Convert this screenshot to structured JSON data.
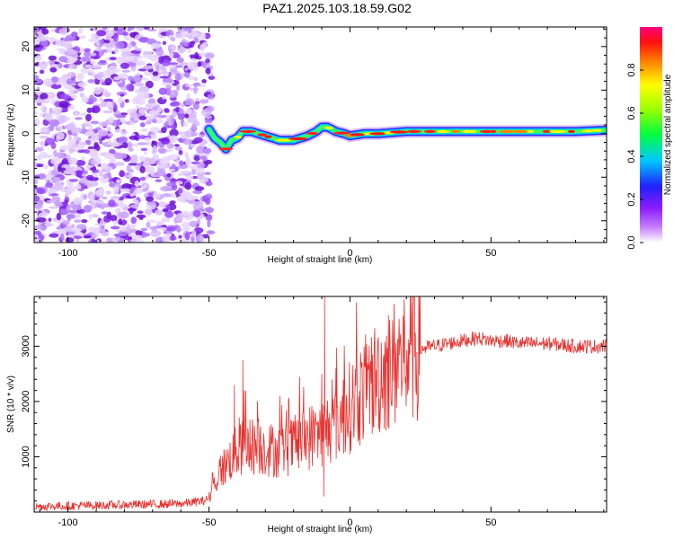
{
  "title": "PAZ1.2025.103.18.59.G02",
  "colors": {
    "snr_line": "#e8312e",
    "scatter_noise": "#8a2be2",
    "axis": "#000000"
  },
  "chart_data": [
    {
      "type": "heatmap",
      "name": "spectrogram",
      "xlabel": "Height of straight line (km)",
      "ylabel": "Frequency (Hz)",
      "xlim": [
        -112,
        91
      ],
      "ylim": [
        -25,
        24.5
      ],
      "xticks": [
        -100,
        -50,
        0,
        50
      ],
      "yticks": [
        -20,
        -10,
        0,
        10,
        20
      ],
      "noise_region": [
        -112,
        -49
      ],
      "ridge": {
        "x": [
          -50,
          -48,
          -46,
          -44,
          -42,
          -40,
          -38,
          -35,
          -30,
          -25,
          -20,
          -15,
          -12,
          -10,
          -8,
          -5,
          -2,
          0,
          5,
          10,
          20,
          30,
          40,
          50,
          60,
          70,
          80,
          91
        ],
        "y": [
          1,
          -1,
          -2,
          -3.5,
          -1.5,
          -1,
          0.5,
          0.5,
          -0.5,
          -1.5,
          -1.5,
          -0.5,
          0.5,
          1.5,
          1.5,
          0.5,
          0,
          -0.5,
          0,
          0,
          0.5,
          0.5,
          0.5,
          0.5,
          0.5,
          0.5,
          0.5,
          0.8
        ]
      },
      "colorbar": {
        "label": "Normalized spectral amplitude",
        "ticks": [
          "0.0",
          "0.2",
          "0.4",
          "0.6",
          "0.8"
        ],
        "range": [
          0,
          1
        ]
      }
    },
    {
      "type": "line",
      "name": "snr",
      "xlabel": "Height of straight line (km)",
      "ylabel": "SNR (10 * v/v)",
      "xlim": [
        -112,
        91
      ],
      "ylim": [
        0,
        3900
      ],
      "xticks": [
        -100,
        -50,
        0,
        50
      ],
      "yticks": [
        1000,
        2000,
        3000
      ],
      "envelope": {
        "x": [
          -112,
          -60,
          -52,
          -50,
          -48,
          -46,
          -44,
          -42,
          -40,
          -38,
          -35,
          -30,
          -25,
          -20,
          -15,
          -12,
          -10,
          -5,
          0,
          5,
          10,
          15,
          20,
          25,
          30,
          35,
          40,
          45,
          50,
          55,
          60,
          70,
          80,
          91
        ],
        "y": [
          100,
          150,
          200,
          250,
          500,
          750,
          850,
          1000,
          1100,
          1150,
          1200,
          1150,
          1100,
          1200,
          1350,
          1400,
          1450,
          1600,
          1900,
          2200,
          2450,
          2650,
          2850,
          2950,
          3000,
          3050,
          3100,
          3150,
          3100,
          3100,
          3050,
          3050,
          3000,
          3000
        ]
      },
      "spikes": [
        {
          "x": -41,
          "y": 2300
        },
        {
          "x": -38,
          "y": 2750
        },
        {
          "x": -37.5,
          "y": 2200
        },
        {
          "x": -10,
          "y": 2500
        },
        {
          "x": -9,
          "y": 3900
        },
        {
          "x": -9.3,
          "y": 280
        },
        {
          "x": -5,
          "y": 2600
        }
      ]
    }
  ]
}
